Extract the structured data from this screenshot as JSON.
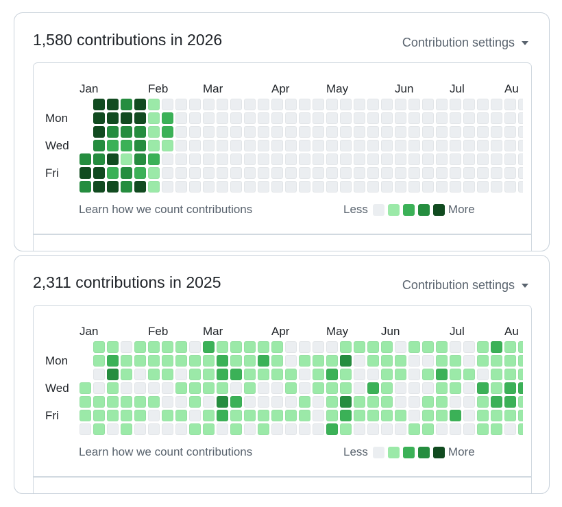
{
  "colors": {
    "levels": [
      "#ebeef1",
      "#9be9a8",
      "#3bb157",
      "#258d3f",
      "#114b20"
    ]
  },
  "day_labels": [
    "Mon",
    "Wed",
    "Fri"
  ],
  "month_labels": [
    "Jan",
    "Feb",
    "Mar",
    "Apr",
    "May",
    "Jun",
    "Jul",
    "Au"
  ],
  "cards": [
    {
      "title": "1,580 contributions in 2026",
      "year": 2026,
      "settings_label": "Contribution settings",
      "learn_link": "Learn how we count contributions",
      "legend_less": "Less",
      "legend_more": "More",
      "weeks": [
        [
          null,
          null,
          null,
          null,
          3,
          4,
          3
        ],
        [
          4,
          4,
          4,
          3,
          3,
          4,
          4
        ],
        [
          4,
          4,
          3,
          2,
          4,
          2,
          4
        ],
        [
          3,
          4,
          3,
          2,
          1,
          3,
          3
        ],
        [
          4,
          4,
          3,
          3,
          3,
          2,
          4
        ],
        [
          1,
          1,
          1,
          1,
          2,
          1,
          1
        ],
        [
          0,
          2,
          2,
          1,
          0,
          0,
          0
        ],
        [
          0,
          0,
          0,
          0,
          0,
          0,
          0
        ],
        [
          0,
          0,
          0,
          0,
          0,
          0,
          0
        ],
        [
          0,
          0,
          0,
          0,
          0,
          0,
          0
        ],
        [
          0,
          0,
          0,
          0,
          0,
          0,
          0
        ],
        [
          0,
          0,
          0,
          0,
          0,
          0,
          0
        ],
        [
          0,
          0,
          0,
          0,
          0,
          0,
          0
        ],
        [
          0,
          0,
          0,
          0,
          0,
          0,
          0
        ],
        [
          0,
          0,
          0,
          0,
          0,
          0,
          0
        ],
        [
          0,
          0,
          0,
          0,
          0,
          0,
          0
        ],
        [
          0,
          0,
          0,
          0,
          0,
          0,
          0
        ],
        [
          0,
          0,
          0,
          0,
          0,
          0,
          0
        ],
        [
          0,
          0,
          0,
          0,
          0,
          0,
          0
        ],
        [
          0,
          0,
          0,
          0,
          0,
          0,
          0
        ],
        [
          0,
          0,
          0,
          0,
          0,
          0,
          0
        ],
        [
          0,
          0,
          0,
          0,
          0,
          0,
          0
        ],
        [
          0,
          0,
          0,
          0,
          0,
          0,
          0
        ],
        [
          0,
          0,
          0,
          0,
          0,
          0,
          0
        ],
        [
          0,
          0,
          0,
          0,
          0,
          0,
          0
        ],
        [
          0,
          0,
          0,
          0,
          0,
          0,
          0
        ],
        [
          0,
          0,
          0,
          0,
          0,
          0,
          0
        ],
        [
          0,
          0,
          0,
          0,
          0,
          0,
          0
        ],
        [
          0,
          0,
          0,
          0,
          0,
          0,
          0
        ],
        [
          0,
          0,
          0,
          0,
          0,
          0,
          0
        ],
        [
          0,
          0,
          0,
          0,
          0,
          0,
          0
        ],
        [
          0,
          0,
          0,
          0,
          0,
          0,
          0
        ],
        [
          0,
          0,
          0,
          0,
          0,
          0,
          0
        ]
      ]
    },
    {
      "title": "2,311 contributions in 2025",
      "year": 2025,
      "settings_label": "Contribution settings",
      "learn_link": "Learn how we count contributions",
      "legend_less": "Less",
      "legend_more": "More",
      "weeks": [
        [
          null,
          null,
          null,
          1,
          1,
          1,
          0
        ],
        [
          1,
          1,
          0,
          0,
          1,
          1,
          1
        ],
        [
          1,
          2,
          3,
          1,
          1,
          1,
          0
        ],
        [
          0,
          1,
          1,
          0,
          1,
          1,
          1
        ],
        [
          1,
          1,
          0,
          0,
          1,
          1,
          0
        ],
        [
          1,
          1,
          1,
          0,
          1,
          0,
          0
        ],
        [
          1,
          1,
          1,
          0,
          0,
          1,
          0
        ],
        [
          1,
          1,
          0,
          1,
          0,
          1,
          0
        ],
        [
          0,
          1,
          1,
          1,
          1,
          0,
          1
        ],
        [
          2,
          1,
          1,
          1,
          0,
          1,
          1
        ],
        [
          1,
          2,
          2,
          1,
          3,
          2,
          0
        ],
        [
          1,
          1,
          2,
          0,
          2,
          1,
          1
        ],
        [
          1,
          1,
          1,
          1,
          0,
          1,
          0
        ],
        [
          1,
          2,
          1,
          0,
          0,
          1,
          1
        ],
        [
          1,
          1,
          1,
          0,
          0,
          1,
          0
        ],
        [
          0,
          0,
          1,
          1,
          0,
          1,
          0
        ],
        [
          0,
          1,
          0,
          0,
          1,
          1,
          0
        ],
        [
          0,
          1,
          1,
          1,
          0,
          0,
          0
        ],
        [
          0,
          1,
          2,
          1,
          1,
          1,
          2
        ],
        [
          1,
          3,
          1,
          1,
          3,
          2,
          1
        ],
        [
          1,
          0,
          0,
          0,
          1,
          1,
          0
        ],
        [
          1,
          1,
          0,
          2,
          1,
          1,
          0
        ],
        [
          1,
          1,
          1,
          1,
          1,
          1,
          0
        ],
        [
          0,
          1,
          1,
          0,
          0,
          1,
          0
        ],
        [
          1,
          0,
          0,
          0,
          0,
          0,
          1
        ],
        [
          1,
          0,
          1,
          0,
          1,
          1,
          1
        ],
        [
          1,
          1,
          2,
          1,
          1,
          1,
          0
        ],
        [
          0,
          1,
          1,
          1,
          0,
          2,
          0
        ],
        [
          0,
          0,
          1,
          0,
          0,
          0,
          0
        ],
        [
          1,
          1,
          0,
          2,
          1,
          1,
          1
        ],
        [
          2,
          1,
          1,
          1,
          2,
          1,
          1
        ],
        [
          1,
          1,
          1,
          2,
          2,
          1,
          0
        ],
        [
          1,
          1,
          1,
          2,
          1,
          1,
          1
        ]
      ]
    }
  ]
}
